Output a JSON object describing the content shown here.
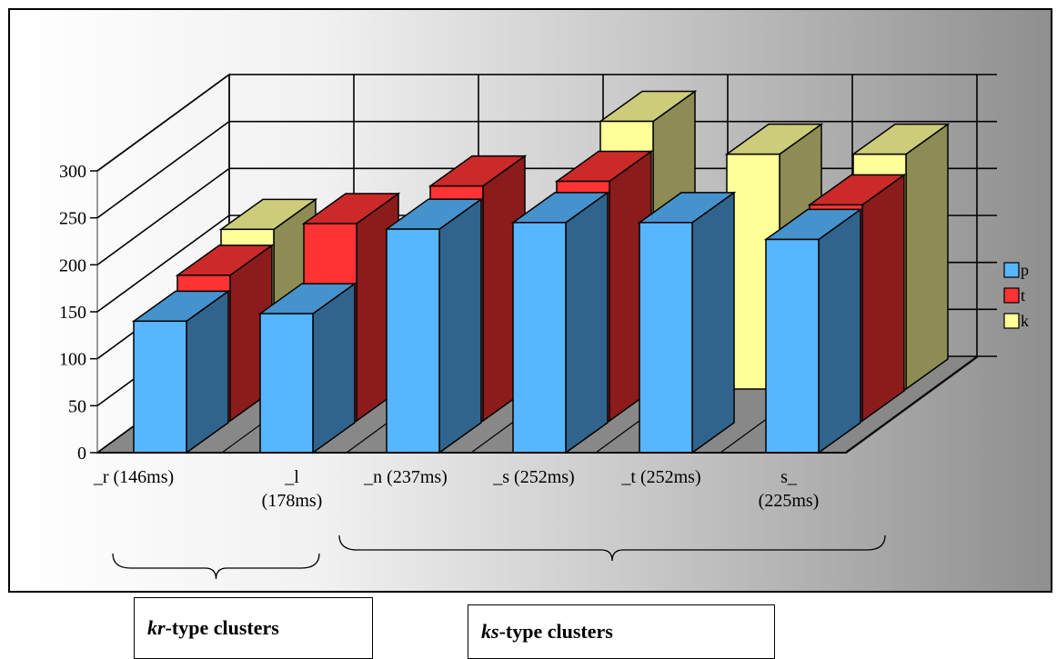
{
  "chart_data": {
    "type": "bar",
    "style": "3d-clustered-columns",
    "categories": [
      [
        "_r (146ms)"
      ],
      [
        "_l",
        "(178ms)"
      ],
      [
        "_n (237ms)"
      ],
      [
        "_s (252ms)"
      ],
      [
        "_t (252ms)"
      ],
      [
        "s_",
        "(225ms)"
      ]
    ],
    "series": [
      {
        "name": "p",
        "color": "#58B6FF",
        "values": [
          140,
          148,
          238,
          245,
          245,
          227
        ]
      },
      {
        "name": "t",
        "color": "#FF3333",
        "values": [
          155,
          210,
          250,
          255,
          0,
          230
        ]
      },
      {
        "name": "k",
        "color": "#FFFF99",
        "values": [
          170,
          145,
          145,
          285,
          250,
          250
        ]
      }
    ],
    "yticks": [
      0,
      50,
      100,
      150,
      200,
      250,
      300
    ],
    "ylim": [
      0,
      300
    ],
    "grid": true,
    "legend_position": "right"
  },
  "annotations": {
    "kr_prefix": "kr",
    "kr_suffix": "-type clusters",
    "ks_prefix": "ks",
    "ks_suffix": "-type clusters"
  }
}
